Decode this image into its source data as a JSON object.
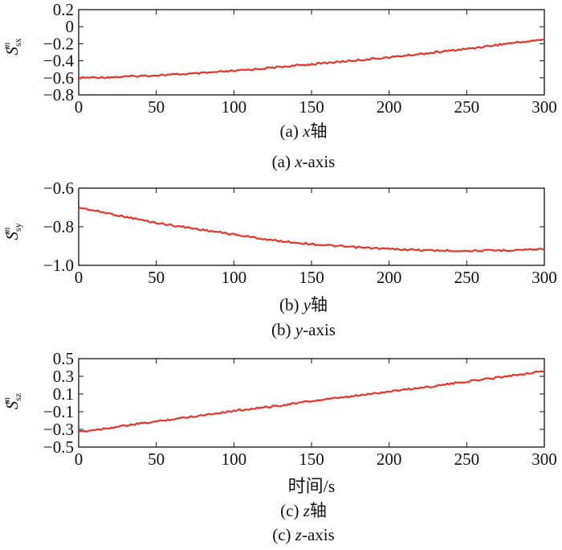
{
  "chart_data": [
    {
      "type": "line",
      "ylabel": {
        "main": "S",
        "sup": "m",
        "sub": "sx"
      },
      "xlabel": "",
      "caption_cn": {
        "prefix": "(a) ",
        "var": "x",
        "suffix": "轴"
      },
      "caption_en": {
        "prefix": "(a) ",
        "var": "x",
        "suffix": "-axis"
      },
      "xlim": [
        0,
        300
      ],
      "ylim": [
        -0.8,
        0.2
      ],
      "xticks": [
        "0",
        "50",
        "100",
        "150",
        "200",
        "250",
        "300"
      ],
      "xtick_values": [
        0,
        50,
        100,
        150,
        200,
        250,
        300
      ],
      "yticks": [
        "0.2",
        "0",
        "−0.2",
        "−0.4",
        "−0.6",
        "−0.8"
      ],
      "ytick_values": [
        0.2,
        0,
        -0.2,
        -0.4,
        -0.6,
        -0.8
      ],
      "series": [
        {
          "color": "#e8332b",
          "x": [
            0,
            25,
            50,
            75,
            100,
            125,
            150,
            175,
            200,
            225,
            250,
            275,
            300
          ],
          "y": [
            -0.6,
            -0.59,
            -0.57,
            -0.55,
            -0.52,
            -0.48,
            -0.44,
            -0.4,
            -0.36,
            -0.31,
            -0.26,
            -0.2,
            -0.15
          ]
        }
      ]
    },
    {
      "type": "line",
      "ylabel": {
        "main": "S",
        "sup": "m",
        "sub": "sy"
      },
      "xlabel": "",
      "caption_cn": {
        "prefix": "(b) ",
        "var": "y",
        "suffix": "轴"
      },
      "caption_en": {
        "prefix": "(b) ",
        "var": "y",
        "suffix": "-axis"
      },
      "xlim": [
        0,
        300
      ],
      "ylim": [
        -1.0,
        -0.6
      ],
      "xticks": [
        "0",
        "50",
        "100",
        "150",
        "200",
        "250",
        "300"
      ],
      "xtick_values": [
        0,
        50,
        100,
        150,
        200,
        250,
        300
      ],
      "yticks": [
        "−0.6",
        "−0.8",
        "−1.0"
      ],
      "ytick_values": [
        -0.6,
        -0.8,
        -1.0
      ],
      "series": [
        {
          "color": "#e8332b",
          "x": [
            0,
            25,
            50,
            75,
            100,
            125,
            150,
            175,
            200,
            225,
            250,
            275,
            300
          ],
          "y": [
            -0.7,
            -0.74,
            -0.78,
            -0.81,
            -0.84,
            -0.87,
            -0.89,
            -0.905,
            -0.915,
            -0.922,
            -0.925,
            -0.922,
            -0.915
          ]
        }
      ]
    },
    {
      "type": "line",
      "ylabel": {
        "main": "S",
        "sup": "m",
        "sub": "sz"
      },
      "xlabel": "时间/s",
      "caption_cn": {
        "prefix": "(c) ",
        "var": "z",
        "suffix": "轴"
      },
      "caption_en": {
        "prefix": "(c) ",
        "var": "z",
        "suffix": "-axis"
      },
      "xlim": [
        0,
        300
      ],
      "ylim": [
        -0.5,
        0.5
      ],
      "xticks": [
        "0",
        "50",
        "100",
        "150",
        "200",
        "250",
        "300"
      ],
      "xtick_values": [
        0,
        50,
        100,
        150,
        200,
        250,
        300
      ],
      "yticks": [
        "0.5",
        "0.3",
        "0.1",
        "−0.1",
        "−0.3",
        "−0.5"
      ],
      "ytick_values": [
        0.5,
        0.3,
        0.1,
        -0.1,
        -0.3,
        -0.5
      ],
      "series": [
        {
          "color": "#e8332b",
          "x": [
            0,
            25,
            50,
            75,
            100,
            125,
            150,
            175,
            200,
            225,
            250,
            275,
            300
          ],
          "y": [
            -0.33,
            -0.27,
            -0.21,
            -0.15,
            -0.09,
            -0.04,
            0.02,
            0.07,
            0.13,
            0.18,
            0.24,
            0.3,
            0.36
          ]
        }
      ]
    }
  ]
}
